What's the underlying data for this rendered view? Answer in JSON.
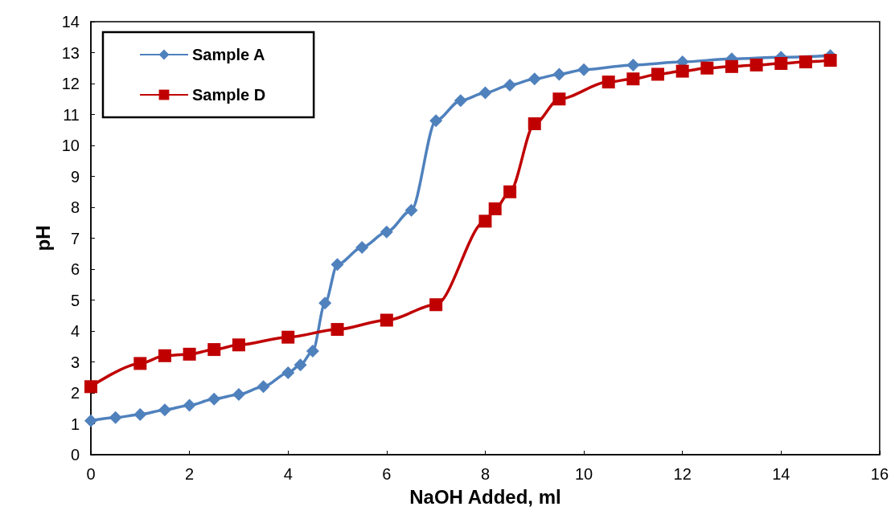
{
  "chart_data": {
    "type": "line",
    "xlabel": "NaOH Added, ml",
    "ylabel": "pH",
    "xlim": [
      0,
      16
    ],
    "xticks": [
      0,
      2,
      4,
      6,
      8,
      10,
      12,
      14,
      16
    ],
    "ylim": [
      0,
      14
    ],
    "yticks": [
      0,
      1,
      2,
      3,
      4,
      5,
      6,
      7,
      8,
      9,
      10,
      11,
      12,
      13,
      14
    ],
    "grid": false,
    "legend": "top left",
    "line_style": "solid",
    "series": [
      {
        "name": "Sample A",
        "color": "#4f81bd",
        "marker": "diamond",
        "x": [
          0,
          0.5,
          1,
          1.5,
          2,
          2.5,
          3,
          3.5,
          4,
          4.25,
          4.5,
          4.75,
          5,
          5.5,
          6,
          6.5,
          7,
          7.5,
          8,
          8.5,
          9,
          9.5,
          10,
          11,
          12,
          13,
          14,
          15
        ],
        "values": [
          1.1,
          1.2,
          1.3,
          1.45,
          1.6,
          1.8,
          1.95,
          2.2,
          2.65,
          2.9,
          3.35,
          4.9,
          6.15,
          6.7,
          7.2,
          7.9,
          10.8,
          11.45,
          11.7,
          11.95,
          12.15,
          12.3,
          12.45,
          12.6,
          12.7,
          12.8,
          12.85,
          12.9
        ]
      },
      {
        "name": "Sample D",
        "color": "#c00000",
        "marker": "square",
        "x": [
          0,
          1,
          1.5,
          2,
          2.5,
          3,
          4,
          5,
          6,
          7,
          8,
          8.2,
          8.5,
          9,
          9.5,
          10.5,
          11,
          11.5,
          12,
          12.5,
          13,
          13.5,
          14,
          14.5,
          15
        ],
        "values": [
          2.2,
          2.95,
          3.2,
          3.25,
          3.4,
          3.55,
          3.8,
          4.05,
          4.35,
          4.85,
          7.55,
          7.95,
          8.5,
          10.7,
          11.5,
          12.05,
          12.15,
          12.3,
          12.4,
          12.5,
          12.55,
          12.6,
          12.65,
          12.7,
          12.75
        ]
      }
    ]
  }
}
